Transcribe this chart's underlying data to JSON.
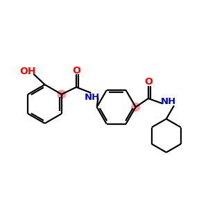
{
  "bg_color": "#ffffff",
  "bond_color": "#000000",
  "o_color": "#ff0000",
  "n_color": "#0000cc",
  "highlight_color": "#ff9999",
  "line_width": 1.6,
  "font_size_label": 9,
  "figsize": [
    3.0,
    3.0
  ],
  "dpi": 100,
  "xlim": [
    0,
    10
  ],
  "ylim": [
    0,
    10
  ]
}
